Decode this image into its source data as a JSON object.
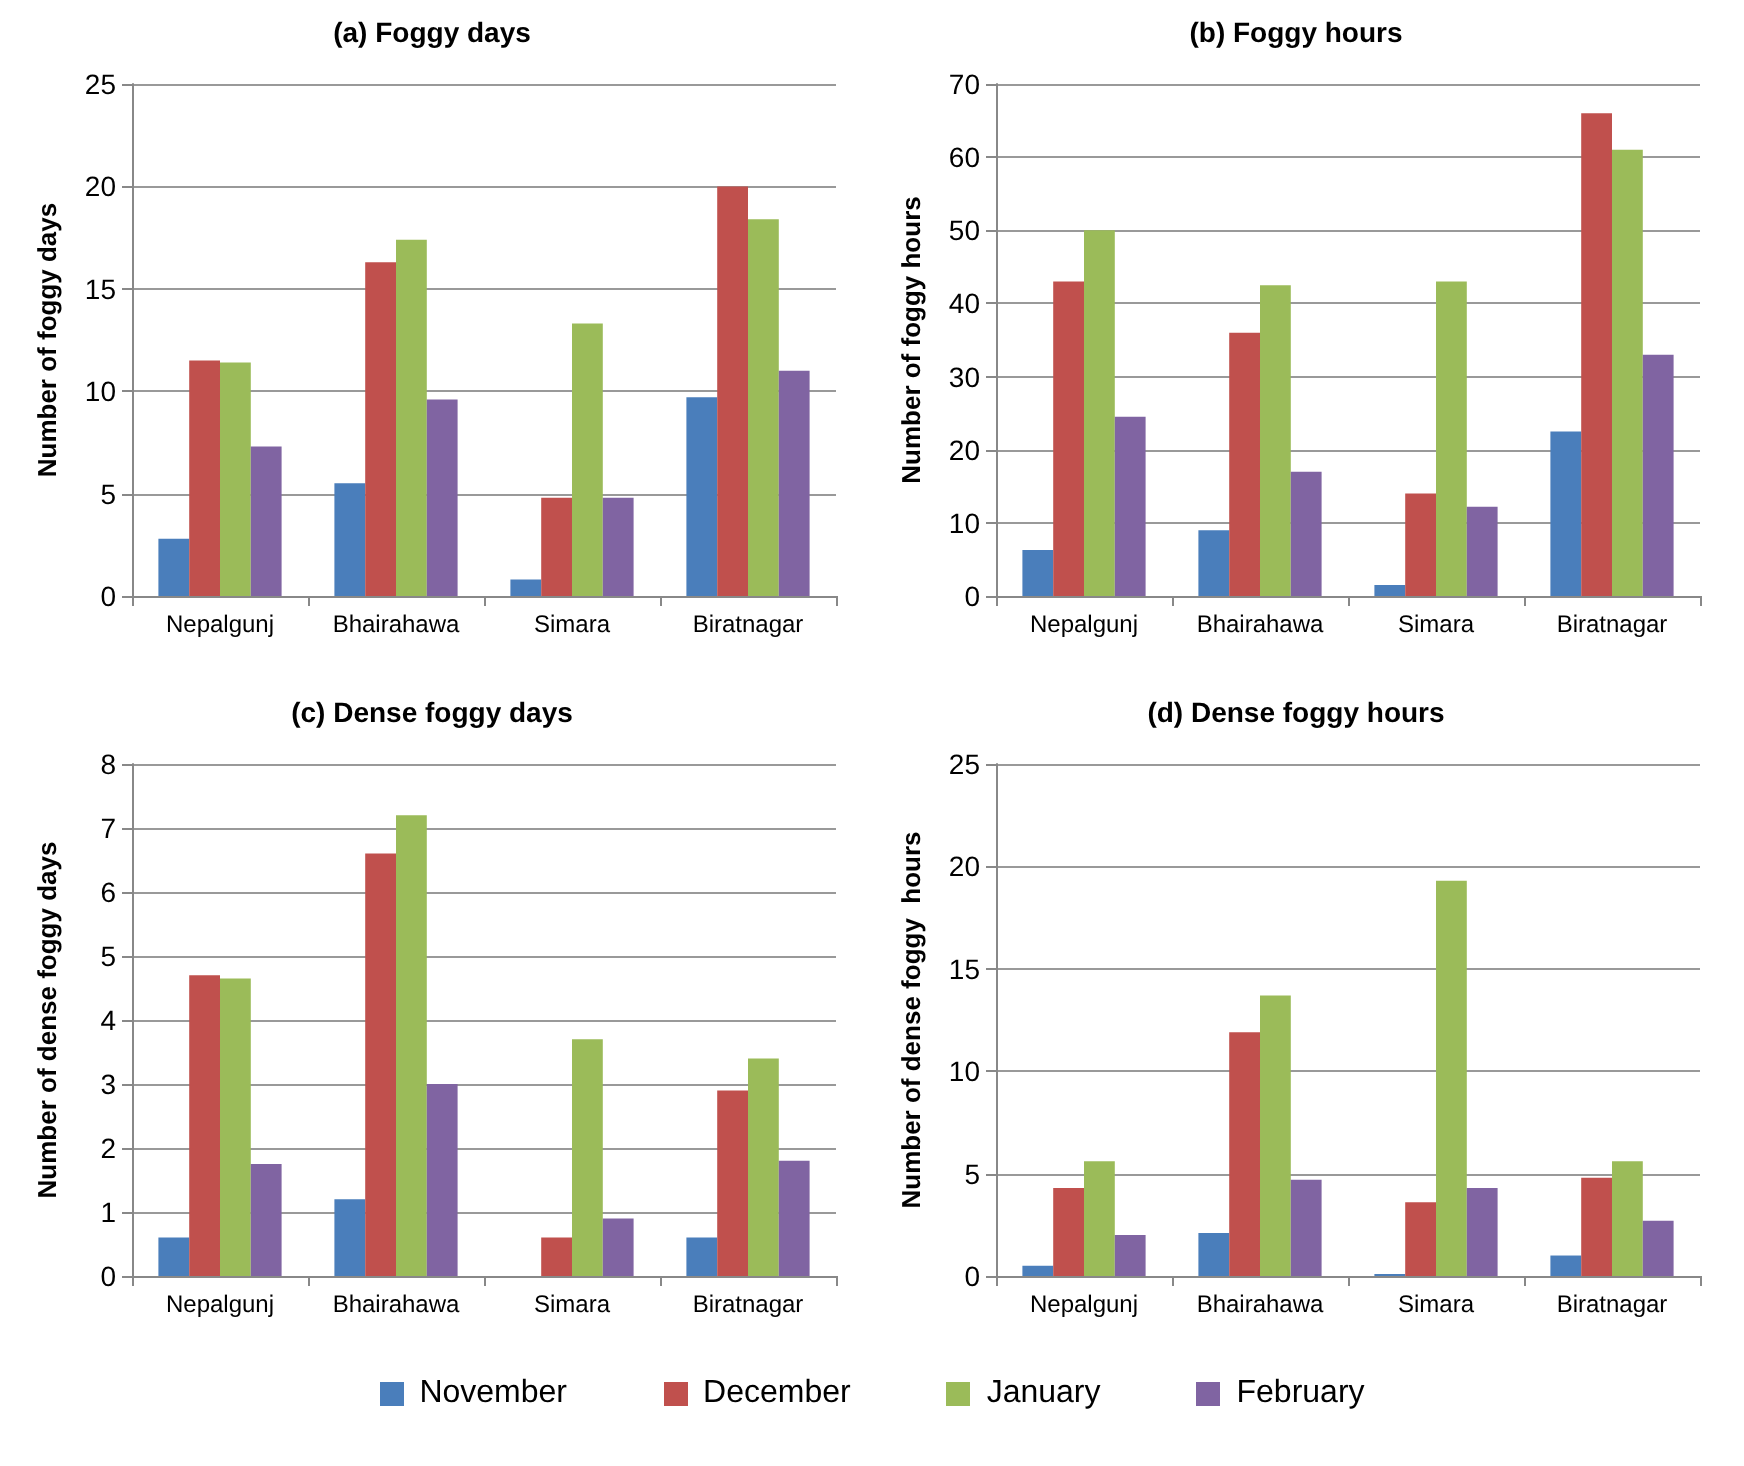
{
  "chart_data": [
    {
      "type": "bar",
      "title": "(a) Foggy days",
      "ylabel": "Number of foggy days",
      "categories": [
        "Nepalgunj",
        "Bhairahawa",
        "Simara",
        "Biratnagar"
      ],
      "ylim": [
        0,
        25
      ],
      "yticks": [
        0,
        5,
        10,
        15,
        20,
        25
      ],
      "grid": "y",
      "legend": "bottom",
      "series": [
        {
          "name": "November",
          "color": "#4a7ebb",
          "values": [
            2.8,
            5.5,
            0.8,
            9.7
          ]
        },
        {
          "name": "December",
          "color": "#c0504d",
          "values": [
            11.5,
            16.3,
            4.8,
            20
          ]
        },
        {
          "name": "January",
          "color": "#9bbb59",
          "values": [
            11.4,
            17.4,
            13.3,
            18.4
          ]
        },
        {
          "name": "February",
          "color": "#8064a2",
          "values": [
            7.3,
            9.6,
            4.8,
            11
          ]
        }
      ]
    },
    {
      "type": "bar",
      "title": "(b) Foggy hours",
      "ylabel": "Number of foggy hours",
      "categories": [
        "Nepalgunj",
        "Bhairahawa",
        "Simara",
        "Biratnagar"
      ],
      "ylim": [
        0,
        70
      ],
      "yticks": [
        0,
        10,
        20,
        30,
        40,
        50,
        60,
        70
      ],
      "grid": "y",
      "series": [
        {
          "color": "#4a7ebb",
          "values": [
            6.3,
            9,
            1.5,
            22.5
          ]
        },
        {
          "color": "#c0504d",
          "values": [
            43,
            36,
            14,
            66
          ]
        },
        {
          "color": "#9bbb59",
          "values": [
            50,
            42.5,
            43,
            61
          ]
        },
        {
          "color": "#8064a2",
          "values": [
            24.5,
            17,
            12.2,
            33
          ]
        }
      ]
    },
    {
      "type": "bar",
      "title": "(c) Dense foggy days",
      "ylabel": "Number of dense foggy days",
      "categories": [
        "Nepalgunj",
        "Bhairahawa",
        "Simara",
        "Biratnagar"
      ],
      "ylim": [
        0,
        8
      ],
      "yticks": [
        0,
        1,
        2,
        3,
        4,
        5,
        6,
        7,
        8
      ],
      "grid": "y",
      "series": [
        {
          "color": "#4a7ebb",
          "values": [
            0.6,
            1.2,
            0,
            0.6
          ]
        },
        {
          "color": "#c0504d",
          "values": [
            4.7,
            6.6,
            0.6,
            2.9
          ]
        },
        {
          "color": "#9bbb59",
          "values": [
            4.65,
            7.2,
            3.7,
            3.4
          ]
        },
        {
          "color": "#8064a2",
          "values": [
            1.75,
            3,
            0.9,
            1.8
          ]
        }
      ]
    },
    {
      "type": "bar",
      "title": "(d) Dense foggy hours",
      "ylabel": "Number of dense foggy  hours",
      "categories": [
        "Nepalgunj",
        "Bhairahawa",
        "Simara",
        "Biratnagar"
      ],
      "ylim": [
        0,
        25
      ],
      "yticks": [
        0,
        5,
        10,
        15,
        20,
        25
      ],
      "grid": "y",
      "series": [
        {
          "color": "#4a7ebb",
          "values": [
            0.5,
            2.1,
            0.1,
            1
          ]
        },
        {
          "color": "#c0504d",
          "values": [
            4.3,
            11.9,
            3.6,
            4.8
          ]
        },
        {
          "color": "#9bbb59",
          "values": [
            5.6,
            13.7,
            19.3,
            5.6
          ]
        },
        {
          "color": "#8064a2",
          "values": [
            2,
            4.7,
            4.3,
            2.7
          ]
        }
      ]
    }
  ]
}
